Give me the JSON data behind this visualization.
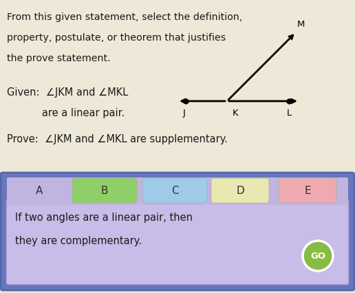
{
  "bg_color": "#ede8d8",
  "top_text_lines": [
    "From this given statement, select the definition,",
    "property, postulate, or theorem that justifies",
    "the prove statement."
  ],
  "given_line1": "Given:  ∠JKM and ∠MKL",
  "given_line2": "           are a linear pair.",
  "prove_line": "Prove:  ∠JKM and ∠MKL are supplementary.",
  "bottom_panel_bg": "#6677bb",
  "bottom_panel_inner": "#c8bce8",
  "answer_text_line1": "If two angles are a linear pair, then",
  "answer_text_line2": "they are complementary.",
  "tab_labels": [
    "A",
    "B",
    "C",
    "D",
    "E"
  ],
  "tab_colors": [
    "#d8d0ee",
    "#8ecf68",
    "#9ecce8",
    "#e8e8b0",
    "#eeaab0"
  ],
  "go_button_color": "#88bb44",
  "go_button_text": "GO",
  "font_color": "#1a1a1a"
}
